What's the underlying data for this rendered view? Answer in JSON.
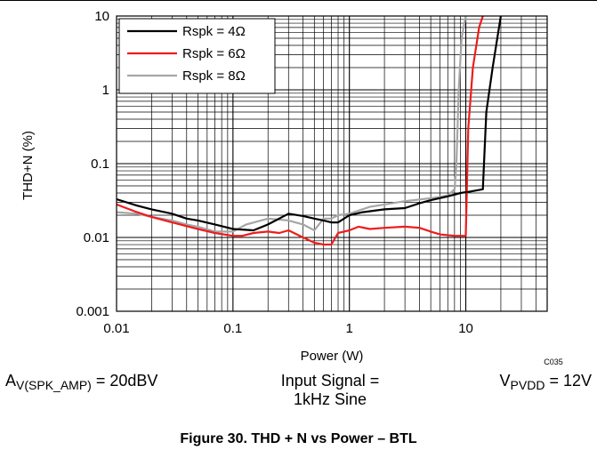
{
  "chart_data": {
    "type": "line",
    "title": "",
    "xlabel": "Power (W)",
    "ylabel": "THD+N (%)",
    "xscale": "log",
    "yscale": "log",
    "xlim": [
      0.01,
      50
    ],
    "ylim": [
      0.001,
      10
    ],
    "x_ticks": [
      "0.01",
      "0.1",
      "1",
      "10"
    ],
    "y_ticks": [
      "0.001",
      "0.01",
      "0.1",
      "1",
      "10"
    ],
    "grid": true,
    "legend_position": "top-left",
    "series": [
      {
        "name": "Rspk = 4Ω",
        "color": "#000000",
        "points": [
          [
            0.01,
            0.033
          ],
          [
            0.015,
            0.027
          ],
          [
            0.02,
            0.024
          ],
          [
            0.03,
            0.021
          ],
          [
            0.04,
            0.018
          ],
          [
            0.05,
            0.017
          ],
          [
            0.07,
            0.015
          ],
          [
            0.1,
            0.013
          ],
          [
            0.15,
            0.0125
          ],
          [
            0.2,
            0.015
          ],
          [
            0.3,
            0.021
          ],
          [
            0.4,
            0.0195
          ],
          [
            0.5,
            0.018
          ],
          [
            0.6,
            0.017
          ],
          [
            0.7,
            0.016
          ],
          [
            0.8,
            0.016
          ],
          [
            1.0,
            0.02
          ],
          [
            1.3,
            0.022
          ],
          [
            2,
            0.024
          ],
          [
            3,
            0.025
          ],
          [
            4,
            0.029
          ],
          [
            5,
            0.032
          ],
          [
            7,
            0.036
          ],
          [
            9,
            0.04
          ],
          [
            11,
            0.042
          ],
          [
            14,
            0.045
          ],
          [
            15,
            0.5
          ],
          [
            17,
            2.0
          ],
          [
            20,
            10
          ]
        ]
      },
      {
        "name": "Rspk = 6Ω",
        "color": "#ee1c1c",
        "points": [
          [
            0.01,
            0.028
          ],
          [
            0.015,
            0.022
          ],
          [
            0.02,
            0.019
          ],
          [
            0.03,
            0.016
          ],
          [
            0.05,
            0.013
          ],
          [
            0.07,
            0.0115
          ],
          [
            0.1,
            0.0105
          ],
          [
            0.12,
            0.0105
          ],
          [
            0.15,
            0.0115
          ],
          [
            0.2,
            0.012
          ],
          [
            0.25,
            0.0115
          ],
          [
            0.3,
            0.0125
          ],
          [
            0.4,
            0.01
          ],
          [
            0.5,
            0.0085
          ],
          [
            0.6,
            0.008
          ],
          [
            0.7,
            0.008
          ],
          [
            0.8,
            0.0115
          ],
          [
            1.0,
            0.0125
          ],
          [
            1.2,
            0.014
          ],
          [
            1.5,
            0.013
          ],
          [
            2,
            0.0135
          ],
          [
            3,
            0.014
          ],
          [
            4,
            0.0135
          ],
          [
            5,
            0.012
          ],
          [
            6,
            0.011
          ],
          [
            8,
            0.0105
          ],
          [
            10,
            0.0105
          ],
          [
            10.5,
            0.3
          ],
          [
            11.5,
            2.0
          ],
          [
            13,
            7.0
          ],
          [
            14,
            10
          ]
        ]
      },
      {
        "name": "Rspk = 8Ω",
        "color": "#a6a6a6",
        "points": [
          [
            0.01,
            0.022
          ],
          [
            0.015,
            0.021
          ],
          [
            0.02,
            0.019
          ],
          [
            0.03,
            0.017
          ],
          [
            0.04,
            0.015
          ],
          [
            0.05,
            0.014
          ],
          [
            0.07,
            0.012
          ],
          [
            0.1,
            0.012
          ],
          [
            0.13,
            0.015
          ],
          [
            0.2,
            0.018
          ],
          [
            0.3,
            0.017
          ],
          [
            0.4,
            0.015
          ],
          [
            0.5,
            0.0125
          ],
          [
            0.6,
            0.018
          ],
          [
            0.7,
            0.018
          ],
          [
            0.8,
            0.02
          ],
          [
            1.0,
            0.021
          ],
          [
            1.5,
            0.026
          ],
          [
            2,
            0.028
          ],
          [
            3,
            0.031
          ],
          [
            5,
            0.034
          ],
          [
            7,
            0.037
          ],
          [
            8,
            0.045
          ],
          [
            8.3,
            0.1
          ],
          [
            8.7,
            1.0
          ],
          [
            9.2,
            5.0
          ],
          [
            10,
            10
          ]
        ]
      }
    ]
  },
  "code_label": "C035",
  "conditions": {
    "gain": {
      "main": "A",
      "sub": "V(SPK_AMP)",
      "rest": " = 20dBV"
    },
    "signal_line1": "Input Signal =",
    "signal_line2": "1kHz Sine",
    "supply": {
      "main": "V",
      "sub": "PVDD",
      "rest": " = 12V"
    }
  },
  "figure_caption": "Figure 30.  THD + N vs Power – BTL"
}
